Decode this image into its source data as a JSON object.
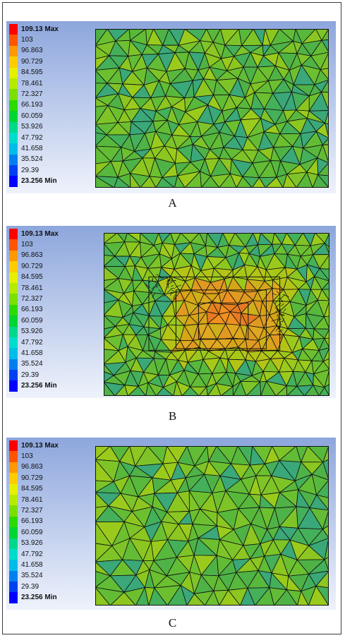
{
  "legend": [
    {
      "label": "109.13 Max",
      "color": "#ff0000"
    },
    {
      "label": "103",
      "color": "#ff5500"
    },
    {
      "label": "96.863",
      "color": "#ff9900"
    },
    {
      "label": "90.729",
      "color": "#ffcc00"
    },
    {
      "label": "84.595",
      "color": "#e6f000"
    },
    {
      "label": "78.461",
      "color": "#b6ea00"
    },
    {
      "label": "72.327",
      "color": "#7ae000"
    },
    {
      "label": "66.193",
      "color": "#2cda00"
    },
    {
      "label": "60.059",
      "color": "#00d630"
    },
    {
      "label": "53.926",
      "color": "#00d88a"
    },
    {
      "label": "47.792",
      "color": "#00dccc"
    },
    {
      "label": "41.658",
      "color": "#00bde8"
    },
    {
      "label": "35.524",
      "color": "#0080f0"
    },
    {
      "label": "29.39",
      "color": "#0040f0"
    },
    {
      "label": "23.256 Min",
      "color": "#0000ff"
    }
  ],
  "panels": [
    {
      "caption": "A"
    },
    {
      "caption": "B"
    },
    {
      "caption": "C"
    }
  ]
}
